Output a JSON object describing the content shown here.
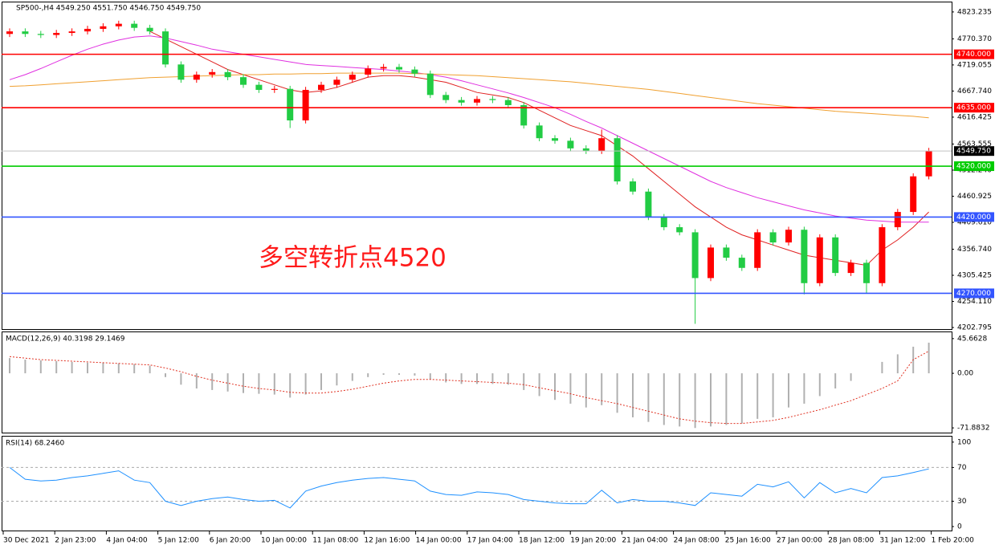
{
  "chart_data": [
    {
      "type": "candlestick",
      "title": "SP500-,H4  4549.250 4551.750 4546.750 4549.750",
      "annotation": "多空转折点4520",
      "open": [
        4780,
        4785,
        4780,
        4778,
        4782,
        4785,
        4790,
        4795,
        4800,
        4792,
        4785,
        4720,
        4690,
        4700,
        4705,
        4695,
        4680,
        4670,
        4672,
        4610,
        4670,
        4680,
        4690,
        4700,
        4712,
        4715,
        4710,
        4702,
        4660,
        4650,
        4645,
        4652,
        4650,
        4640,
        4600,
        4575,
        4570,
        4555,
        4550,
        4575,
        4490,
        4470,
        4420,
        4400,
        4390,
        4300,
        4360,
        4340,
        4320,
        4390,
        4370,
        4395,
        4290,
        4380,
        4310,
        4330,
        4290,
        4400,
        4430,
        4500
      ],
      "high": [
        4791,
        4791,
        4786,
        4788,
        4791,
        4796,
        4801,
        4806,
        4806,
        4798,
        4791,
        4726,
        4706,
        4711,
        4711,
        4701,
        4686,
        4678,
        4678,
        4676,
        4686,
        4696,
        4706,
        4718,
        4721,
        4721,
        4716,
        4708,
        4666,
        4656,
        4658,
        4658,
        4656,
        4646,
        4606,
        4581,
        4576,
        4561,
        4592,
        4581,
        4496,
        4476,
        4426,
        4406,
        4396,
        4366,
        4366,
        4346,
        4396,
        4396,
        4401,
        4401,
        4386,
        4386,
        4336,
        4336,
        4406,
        4436,
        4506,
        4556
      ],
      "low": [
        4774,
        4774,
        4772,
        4772,
        4776,
        4779,
        4784,
        4789,
        4786,
        4779,
        4714,
        4684,
        4684,
        4694,
        4689,
        4674,
        4664,
        4664,
        4595,
        4604,
        4664,
        4674,
        4684,
        4694,
        4706,
        4704,
        4696,
        4654,
        4644,
        4639,
        4639,
        4644,
        4634,
        4594,
        4569,
        4564,
        4549,
        4544,
        4544,
        4484,
        4464,
        4414,
        4394,
        4384,
        4210,
        4294,
        4334,
        4314,
        4314,
        4364,
        4364,
        4268,
        4284,
        4304,
        4304,
        4270,
        4284,
        4394,
        4424,
        4494
      ],
      "close": [
        4785,
        4780,
        4778,
        4782,
        4785,
        4790,
        4795,
        4800,
        4792,
        4785,
        4720,
        4690,
        4700,
        4705,
        4695,
        4680,
        4670,
        4672,
        4610,
        4670,
        4680,
        4690,
        4700,
        4712,
        4715,
        4710,
        4702,
        4660,
        4650,
        4645,
        4652,
        4650,
        4640,
        4600,
        4575,
        4570,
        4555,
        4550,
        4575,
        4490,
        4470,
        4420,
        4400,
        4390,
        4300,
        4360,
        4340,
        4320,
        4390,
        4370,
        4395,
        4290,
        4380,
        4310,
        4330,
        4290,
        4400,
        4430,
        4500,
        4549.75
      ],
      "up_color": "#ff0000",
      "down_color": "#22cc44",
      "ylim": [
        4199.7,
        4842.0
      ],
      "yticks": [
        4823.235,
        {
          "value": 4770.37,
          "label": "4770.370"
        },
        4719.055,
        {
          "value": 4667.74,
          "label": "4667.740"
        },
        4616.425,
        4563.555,
        {
          "value": 4512.24,
          "label": "4512.240"
        },
        4460.925,
        {
          "value": 4409.61,
          "label": "4409.610"
        },
        {
          "value": 4356.74,
          "label": "4356.740"
        },
        4305.425,
        {
          "value": 4254.11,
          "label": "4254.110"
        },
        4202.795
      ],
      "levels": [
        {
          "value": 4740,
          "label": "4740.000",
          "color": "#ff0000"
        },
        {
          "value": 4635,
          "label": "4635.000",
          "color": "#ff0000"
        },
        {
          "value": 4549.75,
          "label": "4549.750",
          "color": "#c0c0c0"
        },
        {
          "value": 4520,
          "label": "4520.000",
          "color": "#00cc00"
        },
        {
          "value": 4420,
          "label": "4420.000",
          "color": "#3355ff"
        },
        {
          "value": 4270,
          "label": "4270.000",
          "color": "#3355ff"
        }
      ],
      "lines": [
        {
          "color": "#e02020",
          "values": [
            null,
            null,
            null,
            null,
            null,
            null,
            null,
            null,
            null,
            4785,
            4770,
            4755,
            4740,
            4725,
            4710,
            4700,
            4690,
            4680,
            4670,
            4665,
            4668,
            4675,
            4685,
            4695,
            4698,
            4698,
            4695,
            4690,
            4685,
            4675,
            4665,
            4660,
            4655,
            4645,
            4630,
            4615,
            4600,
            4590,
            4580,
            4560,
            4540,
            4515,
            4490,
            4465,
            4440,
            4420,
            4400,
            4385,
            4375,
            4365,
            4355,
            4345,
            4340,
            4335,
            4330,
            4325,
            4355,
            4375,
            4400,
            4430
          ]
        },
        {
          "color": "#e030e0",
          "values": [
            4690,
            4700,
            4712,
            4725,
            4738,
            4750,
            4760,
            4768,
            4774,
            4776,
            4772,
            4765,
            4758,
            4750,
            4745,
            4740,
            4735,
            4730,
            4725,
            4720,
            4718,
            4716,
            4714,
            4712,
            4710,
            4707,
            4704,
            4700,
            4695,
            4688,
            4680,
            4672,
            4664,
            4655,
            4645,
            4635,
            4622,
            4608,
            4595,
            4580,
            4565,
            4550,
            4535,
            4520,
            4505,
            4490,
            4478,
            4468,
            4458,
            4450,
            4442,
            4434,
            4428,
            4422,
            4418,
            4414,
            4412,
            4410,
            4410,
            4410
          ]
        },
        {
          "color": "#f0a030",
          "values": [
            4677,
            4678,
            4680,
            4682,
            4684,
            4686,
            4688,
            4690,
            4692,
            4694,
            4695,
            4696,
            4697,
            4698,
            4699,
            4700,
            4700,
            4701,
            4701,
            4702,
            4702,
            4703,
            4703,
            4703,
            4703,
            4703,
            4702,
            4701,
            4700,
            4699,
            4698,
            4696,
            4694,
            4692,
            4690,
            4688,
            4686,
            4683,
            4680,
            4677,
            4674,
            4671,
            4667,
            4663,
            4659,
            4655,
            4651,
            4647,
            4643,
            4640,
            4637,
            4634,
            4631,
            4628,
            4626,
            4624,
            4622,
            4620,
            4618,
            4615
          ]
        }
      ]
    },
    {
      "type": "macd",
      "title": "MACD(12,26,9) 40.3198 29.1469",
      "histogram": [
        20,
        18,
        17,
        16,
        15,
        14,
        14,
        13,
        12,
        10,
        -5,
        -15,
        -20,
        -22,
        -24,
        -26,
        -27,
        -28,
        -32,
        -28,
        -22,
        -16,
        -10,
        -5,
        -2,
        -2,
        -3,
        -8,
        -12,
        -14,
        -14,
        -14,
        -15,
        -22,
        -30,
        -35,
        -40,
        -45,
        -42,
        -52,
        -58,
        -64,
        -68,
        -70,
        -72,
        -70,
        -68,
        -66,
        -60,
        -58,
        -45,
        -40,
        -30,
        -20,
        -10,
        0,
        15,
        25,
        35,
        40.3198
      ],
      "signal": [
        22,
        20,
        18,
        17,
        16,
        15,
        14,
        13,
        12,
        11,
        7,
        2,
        -4,
        -9,
        -13,
        -17,
        -20,
        -22,
        -25,
        -26,
        -26,
        -24,
        -21,
        -17,
        -13,
        -10,
        -8,
        -8,
        -9,
        -10,
        -11,
        -12,
        -13,
        -15,
        -19,
        -23,
        -27,
        -32,
        -36,
        -40,
        -45,
        -50,
        -55,
        -60,
        -63,
        -65,
        -66,
        -66,
        -64,
        -62,
        -58,
        -53,
        -48,
        -42,
        -36,
        -28,
        -20,
        -10,
        18,
        29.1469
      ],
      "hist_color": "#b0b0b0",
      "signal_color": "#e03020",
      "ylim": [
        -78.1,
        54.0
      ],
      "yticks": [
        45.6628,
        {
          "value": 0,
          "label": "0.00"
        },
        -71.8832
      ]
    },
    {
      "type": "rsi",
      "title": "RSI(14) 68.2460",
      "values": [
        70,
        56,
        54,
        55,
        58,
        60,
        63,
        66,
        55,
        52,
        30,
        25,
        30,
        33,
        35,
        32,
        30,
        31,
        22,
        42,
        48,
        52,
        55,
        57,
        58,
        56,
        54,
        42,
        38,
        37,
        41,
        40,
        38,
        32,
        30,
        28,
        27,
        27,
        43,
        28,
        32,
        30,
        30,
        28,
        25,
        40,
        38,
        36,
        50,
        47,
        53,
        34,
        52,
        40,
        45,
        40,
        58,
        60,
        64,
        68.246
      ],
      "color": "#1e90ff",
      "levels": [
        70,
        30
      ],
      "ylim": [
        -4.7,
        106.5
      ],
      "yticks": [
        100,
        70,
        30,
        0
      ],
      "x_labels": [
        "30 Dec 2021",
        "2 Jan 23:00",
        "4 Jan 04:00",
        "5 Jan 12:00",
        "6 Jan 20:00",
        "10 Jan 00:00",
        "11 Jan 08:00",
        "12 Jan 16:00",
        "14 Jan 00:00",
        "17 Jan 04:00",
        "18 Jan 12:00",
        "19 Jan 20:00",
        "21 Jan 04:00",
        "24 Jan 08:00",
        "25 Jan 16:00",
        "27 Jan 00:00",
        "28 Jan 08:00",
        "31 Jan 12:00",
        "1 Feb 20:00"
      ]
    }
  ]
}
